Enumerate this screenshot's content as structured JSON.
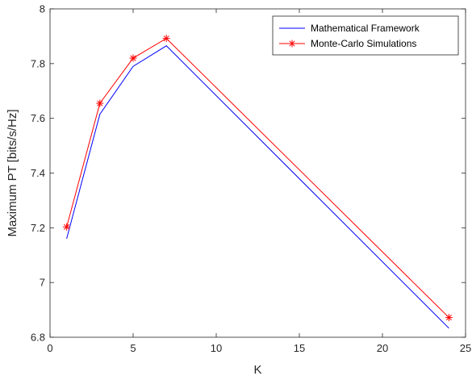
{
  "chart_data": {
    "type": "line",
    "xlabel": "K",
    "ylabel": "Maximum PT [bits/s/Hz]",
    "xlim": [
      0,
      25
    ],
    "ylim": [
      6.8,
      8
    ],
    "x_ticks": [
      0,
      5,
      10,
      15,
      20,
      25
    ],
    "y_ticks": [
      6.8,
      7,
      7.2,
      7.4,
      7.6,
      7.8,
      8
    ],
    "x_tick_labels": [
      "0",
      "5",
      "10",
      "15",
      "20",
      "25"
    ],
    "y_tick_labels": [
      "6.8",
      "7",
      "7.2",
      "7.4",
      "7.6",
      "7.8",
      "8"
    ],
    "grid": false,
    "legend_position": "top-right",
    "series": [
      {
        "name": "Mathematical Framework",
        "color": "#0000ff",
        "marker": "none",
        "x": [
          1,
          3,
          5,
          7,
          24
        ],
        "y": [
          7.16,
          7.615,
          7.79,
          7.865,
          6.833
        ]
      },
      {
        "name": "Monte-Carlo Simulations",
        "color": "#ff0000",
        "marker": "asterisk",
        "x": [
          1,
          3,
          5,
          7,
          24
        ],
        "y": [
          7.203,
          7.655,
          7.82,
          7.892,
          6.872
        ]
      }
    ]
  }
}
